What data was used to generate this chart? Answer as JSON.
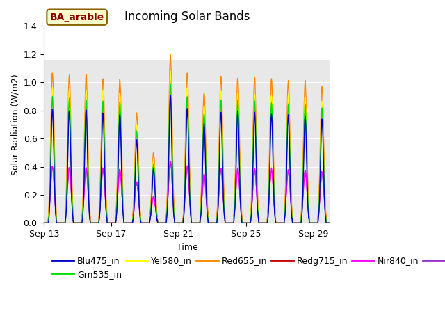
{
  "title": "Incoming Solar Bands",
  "xlabel": "Time",
  "ylabel": "Solar Radiation (W/m2)",
  "annotation": "BA_arable",
  "ylim": [
    0,
    1.4
  ],
  "xtick_labels": [
    "Sep 13",
    "Sep 17",
    "Sep 21",
    "Sep 25",
    "Sep 29"
  ],
  "xtick_positions": [
    0,
    4,
    8,
    12,
    16
  ],
  "series": {
    "Blu475_in": {
      "color": "#0000cc",
      "lw": 1.0
    },
    "Grn535_in": {
      "color": "#00dd00",
      "lw": 1.0
    },
    "Yel580_in": {
      "color": "#ffff00",
      "lw": 1.0
    },
    "Red655_in": {
      "color": "#ff8800",
      "lw": 1.0
    },
    "Redg715_in": {
      "color": "#cc0000",
      "lw": 1.0
    },
    "Nir840_in": {
      "color": "#ff00ff",
      "lw": 1.0
    },
    "Nir945_in": {
      "color": "#9933cc",
      "lw": 1.0
    }
  },
  "bg_color": "#ffffff",
  "plot_bg": "#e8e8e8",
  "title_fontsize": 12,
  "label_fontsize": 9,
  "tick_fontsize": 9,
  "legend_fontsize": 9,
  "n_days": 17,
  "day_peaks_Red655": [
    1.07,
    1.05,
    1.05,
    1.03,
    1.02,
    0.78,
    0.5,
    1.19,
    1.07,
    0.93,
    1.04,
    1.04,
    1.03,
    1.02,
    1.01,
    1.0,
    0.97
  ],
  "band_scales": {
    "Blu475_in": 0.76,
    "Grn535_in": 0.84,
    "Yel580_in": 0.9,
    "Red655_in": 1.0,
    "Redg715_in": 0.86,
    "Nir840_in": 0.375,
    "Nir945_in": 0.365
  },
  "band_widths": {
    "Blu475_in": 0.085,
    "Grn535_in": 0.09,
    "Yel580_in": 0.095,
    "Red655_in": 0.1,
    "Redg715_in": 0.095,
    "Nir840_in": 0.11,
    "Nir945_in": 0.115
  }
}
